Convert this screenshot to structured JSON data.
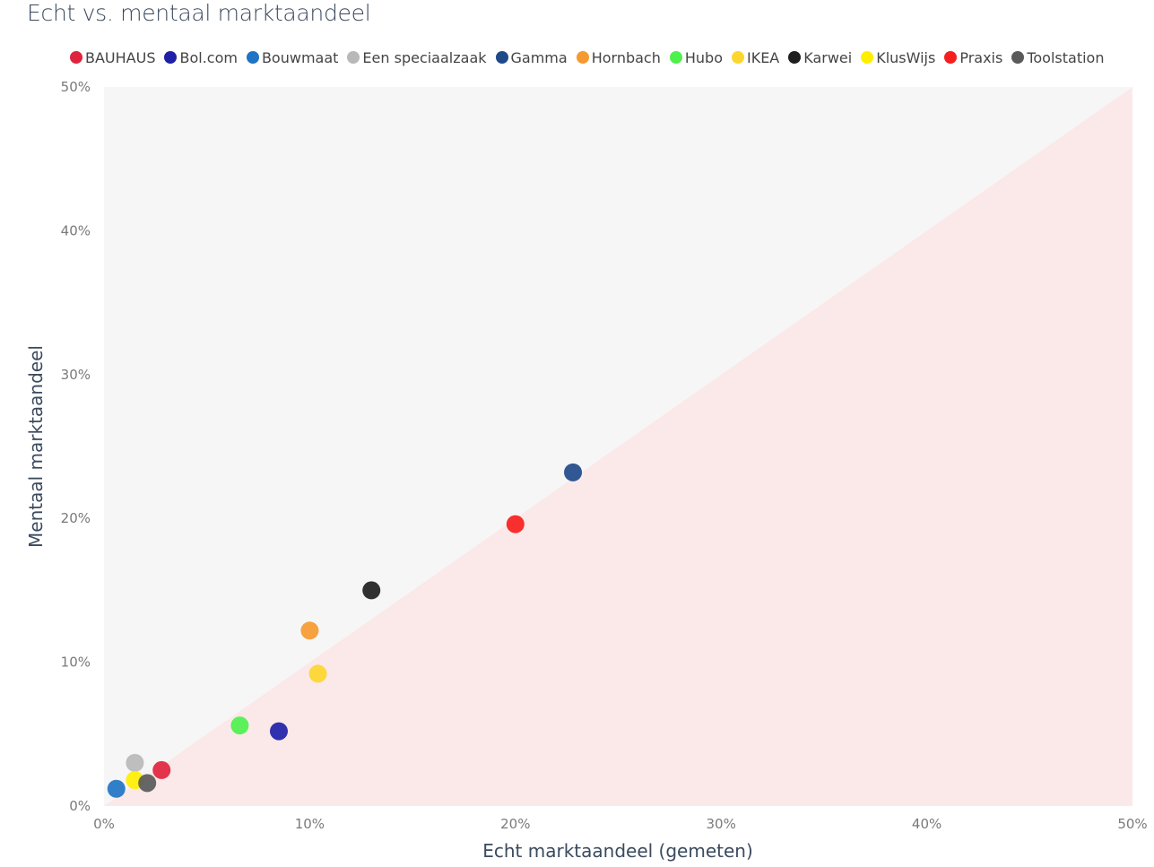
{
  "chart_data": {
    "type": "scatter",
    "title": "Echt vs. mentaal marktaandeel",
    "xlabel": "Echt marktaandeel (gemeten)",
    "ylabel": "Mentaal marktaandeel",
    "xlim": [
      0,
      50
    ],
    "ylim": [
      0,
      50
    ],
    "x_ticks": [
      "0%",
      "10%",
      "20%",
      "30%",
      "40%",
      "50%"
    ],
    "y_ticks": [
      "0%",
      "10%",
      "20%",
      "30%",
      "40%",
      "50%"
    ],
    "legend_position": "top",
    "background": {
      "above_diagonal": "#f6f6f6",
      "below_diagonal": "#fbe9e9"
    },
    "series": [
      {
        "name": "BAUHAUS",
        "color": "#e0243d",
        "x": 2.8,
        "y": 2.5
      },
      {
        "name": "Bol.com",
        "color": "#1f1fa8",
        "x": 8.5,
        "y": 5.2
      },
      {
        "name": "Bouwmaat",
        "color": "#1f74c4",
        "x": 0.6,
        "y": 1.2
      },
      {
        "name": "Een speciaalzaak",
        "color": "#b8b8b8",
        "x": 1.5,
        "y": 3.0
      },
      {
        "name": "Gamma",
        "color": "#1f4a8a",
        "x": 22.8,
        "y": 23.2
      },
      {
        "name": "Hornbach",
        "color": "#f59a30",
        "x": 10.0,
        "y": 12.2
      },
      {
        "name": "Hubo",
        "color": "#4ef04e",
        "x": 6.6,
        "y": 5.6
      },
      {
        "name": "IKEA",
        "color": "#fcd62e",
        "x": 10.4,
        "y": 9.2
      },
      {
        "name": "Karwei",
        "color": "#1e1e1e",
        "x": 13.0,
        "y": 15.0
      },
      {
        "name": "KlusWijs",
        "color": "#ffee00",
        "x": 1.5,
        "y": 1.8
      },
      {
        "name": "Praxis",
        "color": "#f61e1e",
        "x": 20.0,
        "y": 19.6
      },
      {
        "name": "Toolstation",
        "color": "#5a5a5a",
        "x": 2.1,
        "y": 1.6
      }
    ]
  }
}
